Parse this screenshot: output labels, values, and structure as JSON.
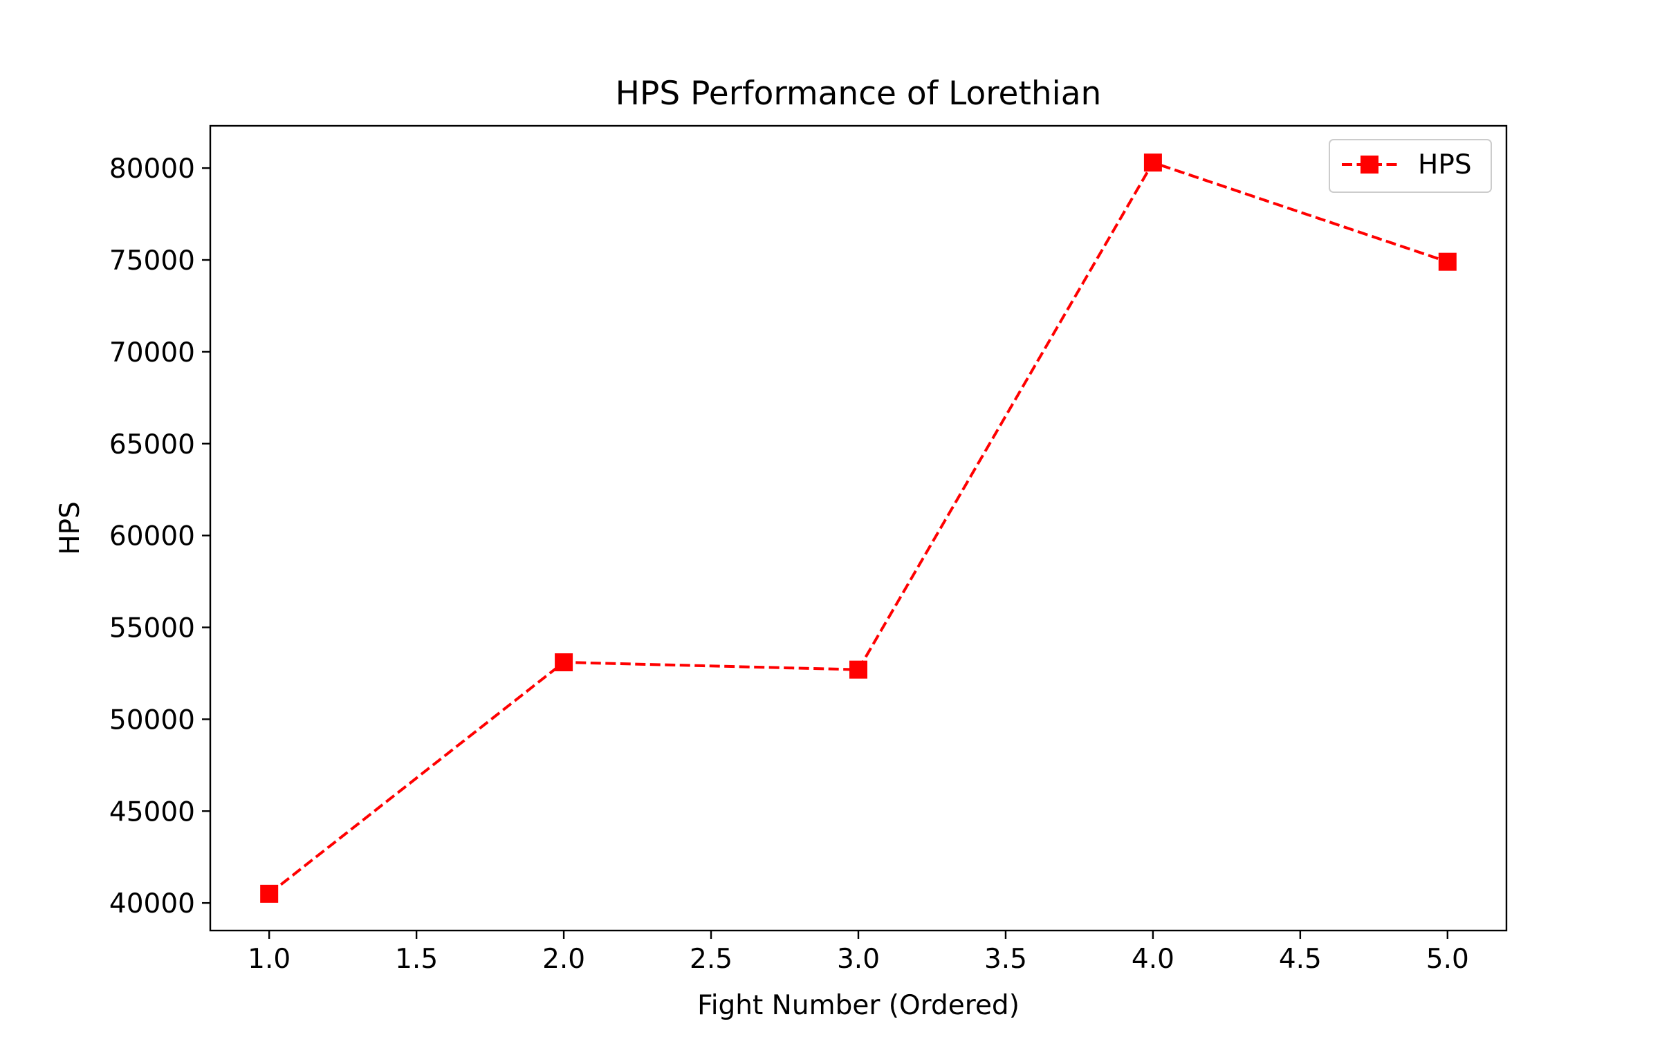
{
  "chart_data": {
    "type": "line",
    "title": "HPS Performance of Lorethian",
    "xlabel": "Fight Number (Ordered)",
    "ylabel": "HPS",
    "xlim": [
      0.8,
      5.2
    ],
    "ylim": [
      38500,
      82300
    ],
    "xticks": [
      1.0,
      1.5,
      2.0,
      2.5,
      3.0,
      3.5,
      4.0,
      4.5,
      5.0
    ],
    "xtick_labels": [
      "1.0",
      "1.5",
      "2.0",
      "2.5",
      "3.0",
      "3.5",
      "4.0",
      "4.5",
      "5.0"
    ],
    "yticks": [
      40000,
      45000,
      50000,
      55000,
      60000,
      65000,
      70000,
      75000,
      80000
    ],
    "ytick_labels": [
      "40000",
      "45000",
      "50000",
      "55000",
      "60000",
      "65000",
      "70000",
      "75000",
      "80000"
    ],
    "grid": false,
    "legend_position": "top-right",
    "series": [
      {
        "name": "HPS",
        "color": "#ff0000",
        "line_style": "dashed",
        "marker": "square",
        "x": [
          1,
          2,
          3,
          4,
          5
        ],
        "y": [
          40500,
          53100,
          52700,
          80300,
          74900
        ]
      }
    ]
  }
}
